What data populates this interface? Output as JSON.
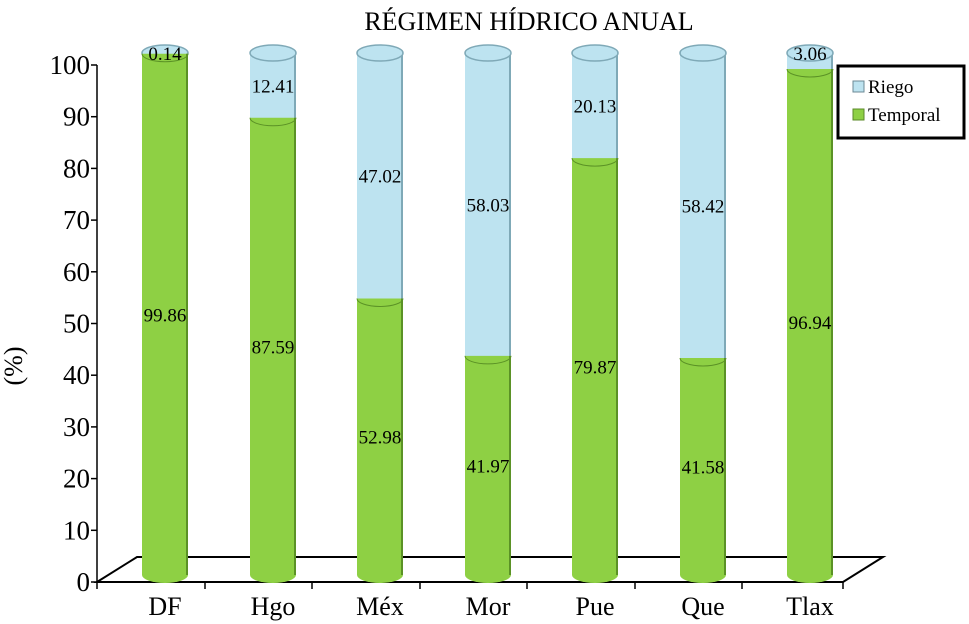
{
  "chart_data": {
    "type": "bar",
    "stacked": true,
    "style": "3d-cylinder",
    "title": "RÉGIMEN HÍDRICO ANUAL",
    "xlabel": "",
    "ylabel": "(%)",
    "ylim": [
      0,
      100
    ],
    "yticks": [
      "0",
      "10",
      "20",
      "30",
      "40",
      "50",
      "60",
      "70",
      "80",
      "90",
      "100"
    ],
    "categories": [
      "DF",
      "Hgo",
      "Méx",
      "Mor",
      "Pue",
      "Que",
      "Tlax"
    ],
    "series": [
      {
        "name": "Temporal",
        "color": "#8ed044",
        "values": [
          99.86,
          87.59,
          52.98,
          41.97,
          79.87,
          41.58,
          96.94
        ],
        "labels": [
          "99.86",
          "87.59",
          "52.98",
          "41.97",
          "79.87",
          "41.58",
          "96.94"
        ]
      },
      {
        "name": "Riego",
        "color": "#bde3f0",
        "values": [
          0.14,
          12.41,
          47.02,
          58.03,
          20.13,
          58.42,
          3.06
        ],
        "labels": [
          "0.14",
          "12.41",
          "47.02",
          "58.03",
          "20.13",
          "58.42",
          "3.06"
        ]
      }
    ],
    "legend": {
      "position": "top-right",
      "entries": [
        "Riego",
        "Temporal"
      ]
    },
    "grid": false
  }
}
